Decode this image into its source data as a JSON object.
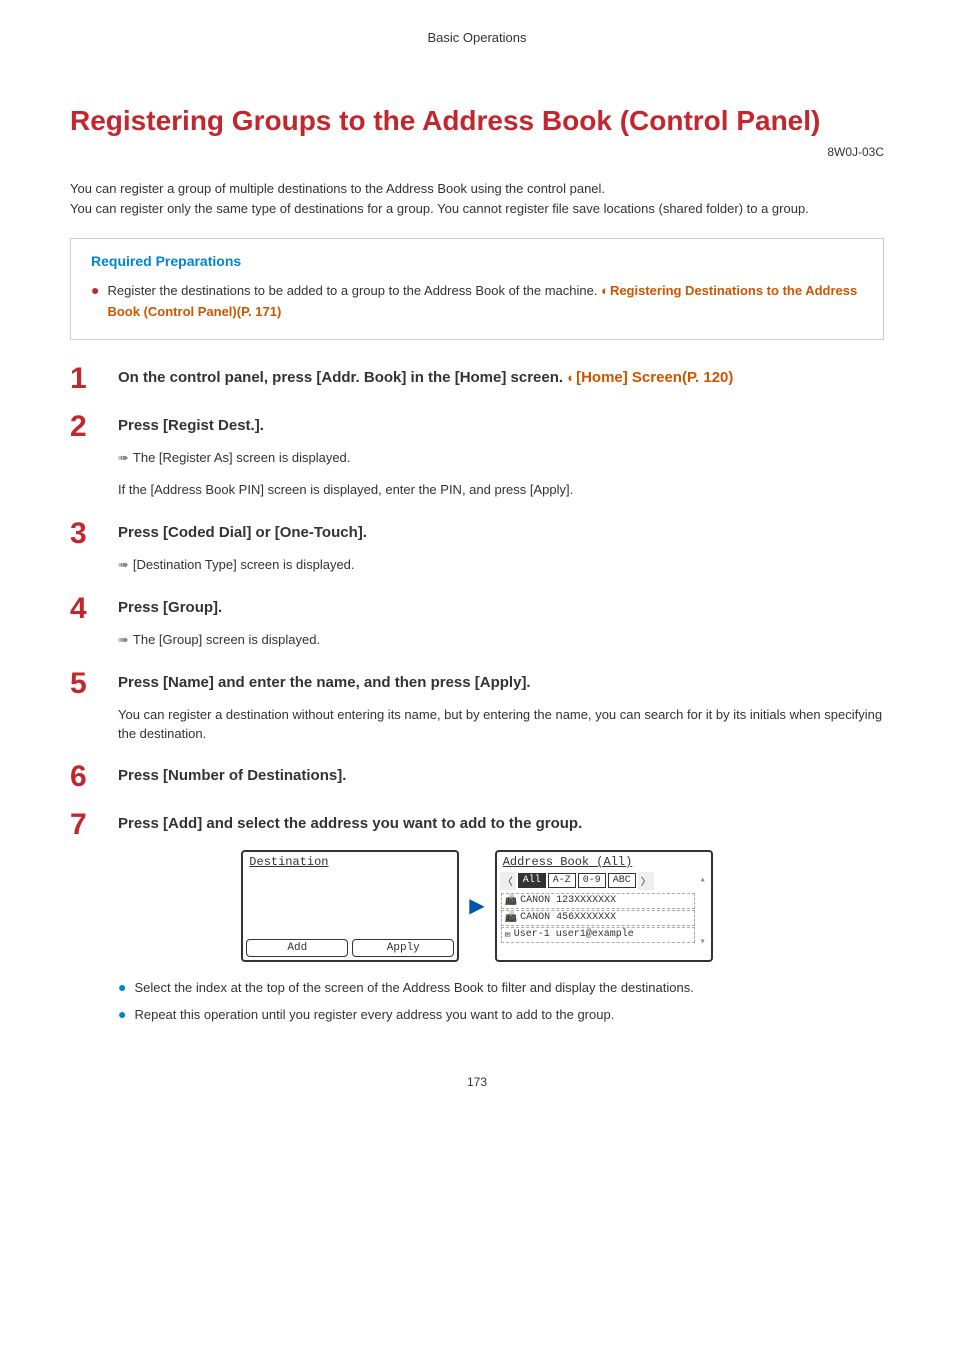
{
  "header": "Basic Operations",
  "title": "Registering Groups to the Address Book (Control Panel)",
  "doc_id": "8W0J-03C",
  "intro": "You can register a group of multiple destinations to the Address Book using the control panel.\nYou can register only the same type of destinations for a group. You cannot register file save locations (shared folder) to a group.",
  "prep": {
    "title": "Required Preparations",
    "text": "Register the destinations to be added to a group to the Address Book of the machine. ",
    "link": "Registering Destinations to the Address Book (Control Panel)(P. 171)"
  },
  "steps": [
    {
      "num": "1",
      "title_pre": "On the control panel, press [Addr. Book] in the [Home] screen. ",
      "title_link": "[Home] Screen(P. 120)"
    },
    {
      "num": "2",
      "title": "Press [Regist Dest.].",
      "body_arrow": "The [Register As] screen is displayed.",
      "body_plain": "If the [Address Book PIN] screen is displayed, enter the PIN, and press [Apply]."
    },
    {
      "num": "3",
      "title": "Press [Coded Dial] or [One-Touch].",
      "body_arrow": "[Destination Type] screen is displayed."
    },
    {
      "num": "4",
      "title": "Press [Group].",
      "body_arrow": "The [Group] screen is displayed."
    },
    {
      "num": "5",
      "title": "Press [Name] and enter the name, and then press [Apply].",
      "sub": "You can register a destination without entering its name, but by entering the name, you can search for it by its initials when specifying the destination."
    },
    {
      "num": "6",
      "title": "Press [Number of Destinations]."
    },
    {
      "num": "7",
      "title": "Press [Add] and select the address you want to add to the group."
    }
  ],
  "lcd_left": {
    "title": "Destination",
    "btn1": "Add",
    "btn2": "Apply"
  },
  "lcd_right": {
    "title": "Address Book (All)",
    "tabs": [
      "All",
      "A-Z",
      "0-9",
      "ABC"
    ],
    "rows": [
      {
        "icon": "📠",
        "label": "CANON 123XXXXXXX"
      },
      {
        "icon": "📠",
        "label": "CANON 456XXXXXXX"
      },
      {
        "icon": "✉",
        "label": "User-1 user1@example"
      }
    ]
  },
  "tail_bullets": [
    "Select the index at the top of the screen of the Address Book to filter and display the destinations.",
    "Repeat this operation until you register every address you want to add to the group."
  ],
  "page_number": "173",
  "colors": {
    "heading": "#c1272d",
    "link_blue": "#0085cc",
    "link_orange": "#cc5500"
  }
}
